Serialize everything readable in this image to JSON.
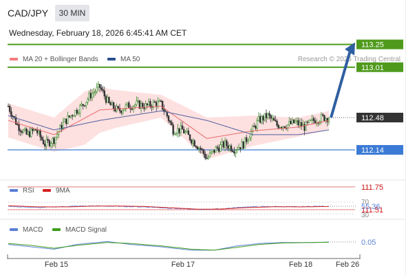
{
  "header": {
    "symbol": "CAD/JPY",
    "interval": "30 MIN",
    "datetime": "Wednesday, February 18, 2026 6:45:41 AM CET",
    "attribution": "Research © 2026 Trading Central"
  },
  "legend_main": [
    {
      "label": "MA 20 + Bollinger Bands",
      "color": "#f47c7c"
    },
    {
      "label": "MA 50",
      "color": "#2a4f8f"
    }
  ],
  "legend_rsi": [
    {
      "label": "RSI",
      "color": "#5b7fd6"
    },
    {
      "label": "9MA",
      "color": "#d62020"
    }
  ],
  "legend_macd": [
    {
      "label": "MACD",
      "color": "#5b7fd6"
    },
    {
      "label": "MACD Signal",
      "color": "#3e9c1a"
    }
  ],
  "colors": {
    "resistance": "#4f9a1c",
    "support": "#3b7bd6",
    "red_level": "#e07a7a",
    "red_text": "#cc1111",
    "arrow": "#2e5fa0",
    "current_price": "#333333"
  },
  "levels": {
    "resistance": [
      113.25,
      113.01
    ],
    "current": 112.48,
    "support": [
      112.14
    ],
    "red": [
      111.75,
      111.51
    ]
  },
  "rsi_panel": {
    "current_value": 55.36,
    "levels": [
      70,
      30
    ]
  },
  "macd_panel": {
    "current_value": 0.05
  },
  "x_axis_labels": [
    "Feb 15",
    "Feb 17",
    "Feb 18",
    "Feb 26"
  ],
  "chart_data": [
    {
      "type": "candlestick",
      "title": "",
      "xlabel": "",
      "ylabel": "",
      "ylim": [
        111.45,
        113.3
      ],
      "price_labels": [
        {
          "value": 113.25,
          "label": "113.25",
          "kind": "resistance"
        },
        {
          "value": 113.01,
          "label": "113.01",
          "kind": "resistance"
        },
        {
          "value": 112.48,
          "label": "112.48",
          "kind": "current"
        },
        {
          "value": 112.14,
          "label": "112.14",
          "kind": "support"
        },
        {
          "value": 111.75,
          "label": "111.75",
          "kind": "red"
        },
        {
          "value": 111.51,
          "label": "111.51",
          "kind": "red"
        }
      ],
      "forecast_target": 113.25,
      "close_anchors": [
        [
          0,
          112.6
        ],
        [
          6,
          112.4
        ],
        [
          12,
          112.3
        ],
        [
          18,
          112.35
        ],
        [
          24,
          112.2
        ],
        [
          30,
          112.25
        ],
        [
          36,
          112.42
        ],
        [
          42,
          112.52
        ],
        [
          48,
          112.6
        ],
        [
          54,
          112.72
        ],
        [
          60,
          112.8
        ],
        [
          66,
          112.62
        ],
        [
          72,
          112.55
        ],
        [
          78,
          112.6
        ],
        [
          84,
          112.62
        ],
        [
          90,
          112.6
        ],
        [
          96,
          112.63
        ],
        [
          100,
          112.62
        ],
        [
          104,
          112.5
        ],
        [
          108,
          112.35
        ],
        [
          114,
          112.35
        ],
        [
          120,
          112.25
        ],
        [
          126,
          112.15
        ],
        [
          130,
          112.05
        ],
        [
          136,
          112.15
        ],
        [
          142,
          112.2
        ],
        [
          148,
          112.15
        ],
        [
          154,
          112.2
        ],
        [
          158,
          112.3
        ],
        [
          164,
          112.45
        ],
        [
          170,
          112.5
        ],
        [
          176,
          112.4
        ],
        [
          182,
          112.4
        ],
        [
          188,
          112.43
        ],
        [
          194,
          112.38
        ],
        [
          200,
          112.45
        ],
        [
          206,
          112.48
        ],
        [
          210,
          112.48
        ]
      ],
      "ma20_anchors": [
        [
          0,
          112.45
        ],
        [
          30,
          112.3
        ],
        [
          60,
          112.56
        ],
        [
          100,
          112.6
        ],
        [
          130,
          112.26
        ],
        [
          160,
          112.34
        ],
        [
          190,
          112.38
        ],
        [
          210,
          112.45
        ]
      ],
      "ma50_anchors": [
        [
          0,
          112.5
        ],
        [
          30,
          112.35
        ],
        [
          60,
          112.45
        ],
        [
          100,
          112.55
        ],
        [
          130,
          112.45
        ],
        [
          160,
          112.3
        ],
        [
          190,
          112.3
        ],
        [
          210,
          112.35
        ]
      ],
      "bollinger_width": [
        [
          0,
          0.18
        ],
        [
          30,
          0.18
        ],
        [
          50,
          0.28
        ],
        [
          70,
          0.2
        ],
        [
          100,
          0.12
        ],
        [
          130,
          0.22
        ],
        [
          160,
          0.16
        ],
        [
          190,
          0.1
        ],
        [
          210,
          0.1
        ]
      ]
    },
    {
      "type": "line",
      "title": "",
      "ylim": [
        20,
        80
      ],
      "series": [
        {
          "name": "RSI",
          "anchors": [
            [
              0,
              55
            ],
            [
              20,
              48
            ],
            [
              40,
              55
            ],
            [
              55,
              57
            ],
            [
              70,
              55
            ],
            [
              90,
              52
            ],
            [
              110,
              44
            ],
            [
              125,
              38
            ],
            [
              140,
              42
            ],
            [
              155,
              52
            ],
            [
              175,
              54
            ],
            [
              190,
              52
            ],
            [
              200,
              55
            ],
            [
              210,
              55
            ]
          ]
        },
        {
          "name": "9MA",
          "anchors": [
            [
              0,
              58
            ],
            [
              20,
              52
            ],
            [
              40,
              52
            ],
            [
              55,
              56
            ],
            [
              70,
              57
            ],
            [
              90,
              54
            ],
            [
              110,
              46
            ],
            [
              125,
              40
            ],
            [
              140,
              41
            ],
            [
              155,
              48
            ],
            [
              175,
              53
            ],
            [
              190,
              52
            ],
            [
              200,
              53
            ],
            [
              210,
              54
            ]
          ]
        }
      ]
    },
    {
      "type": "line",
      "title": "",
      "ylim": [
        -0.25,
        0.25
      ],
      "series": [
        {
          "name": "MACD",
          "anchors": [
            [
              0,
              0.0
            ],
            [
              15,
              -0.05
            ],
            [
              30,
              -0.1
            ],
            [
              45,
              0.0
            ],
            [
              65,
              0.06
            ],
            [
              80,
              0.0
            ],
            [
              100,
              -0.05
            ],
            [
              120,
              -0.12
            ],
            [
              135,
              -0.12
            ],
            [
              150,
              -0.03
            ],
            [
              165,
              0.02
            ],
            [
              180,
              0.04
            ],
            [
              200,
              0.04
            ],
            [
              210,
              0.05
            ]
          ]
        },
        {
          "name": "MACD Signal",
          "anchors": [
            [
              0,
              0.02
            ],
            [
              15,
              -0.02
            ],
            [
              30,
              -0.08
            ],
            [
              45,
              -0.02
            ],
            [
              65,
              0.04
            ],
            [
              80,
              0.02
            ],
            [
              100,
              -0.03
            ],
            [
              120,
              -0.1
            ],
            [
              135,
              -0.12
            ],
            [
              150,
              -0.06
            ],
            [
              165,
              0.0
            ],
            [
              180,
              0.03
            ],
            [
              200,
              0.04
            ],
            [
              210,
              0.045
            ]
          ]
        }
      ]
    }
  ]
}
